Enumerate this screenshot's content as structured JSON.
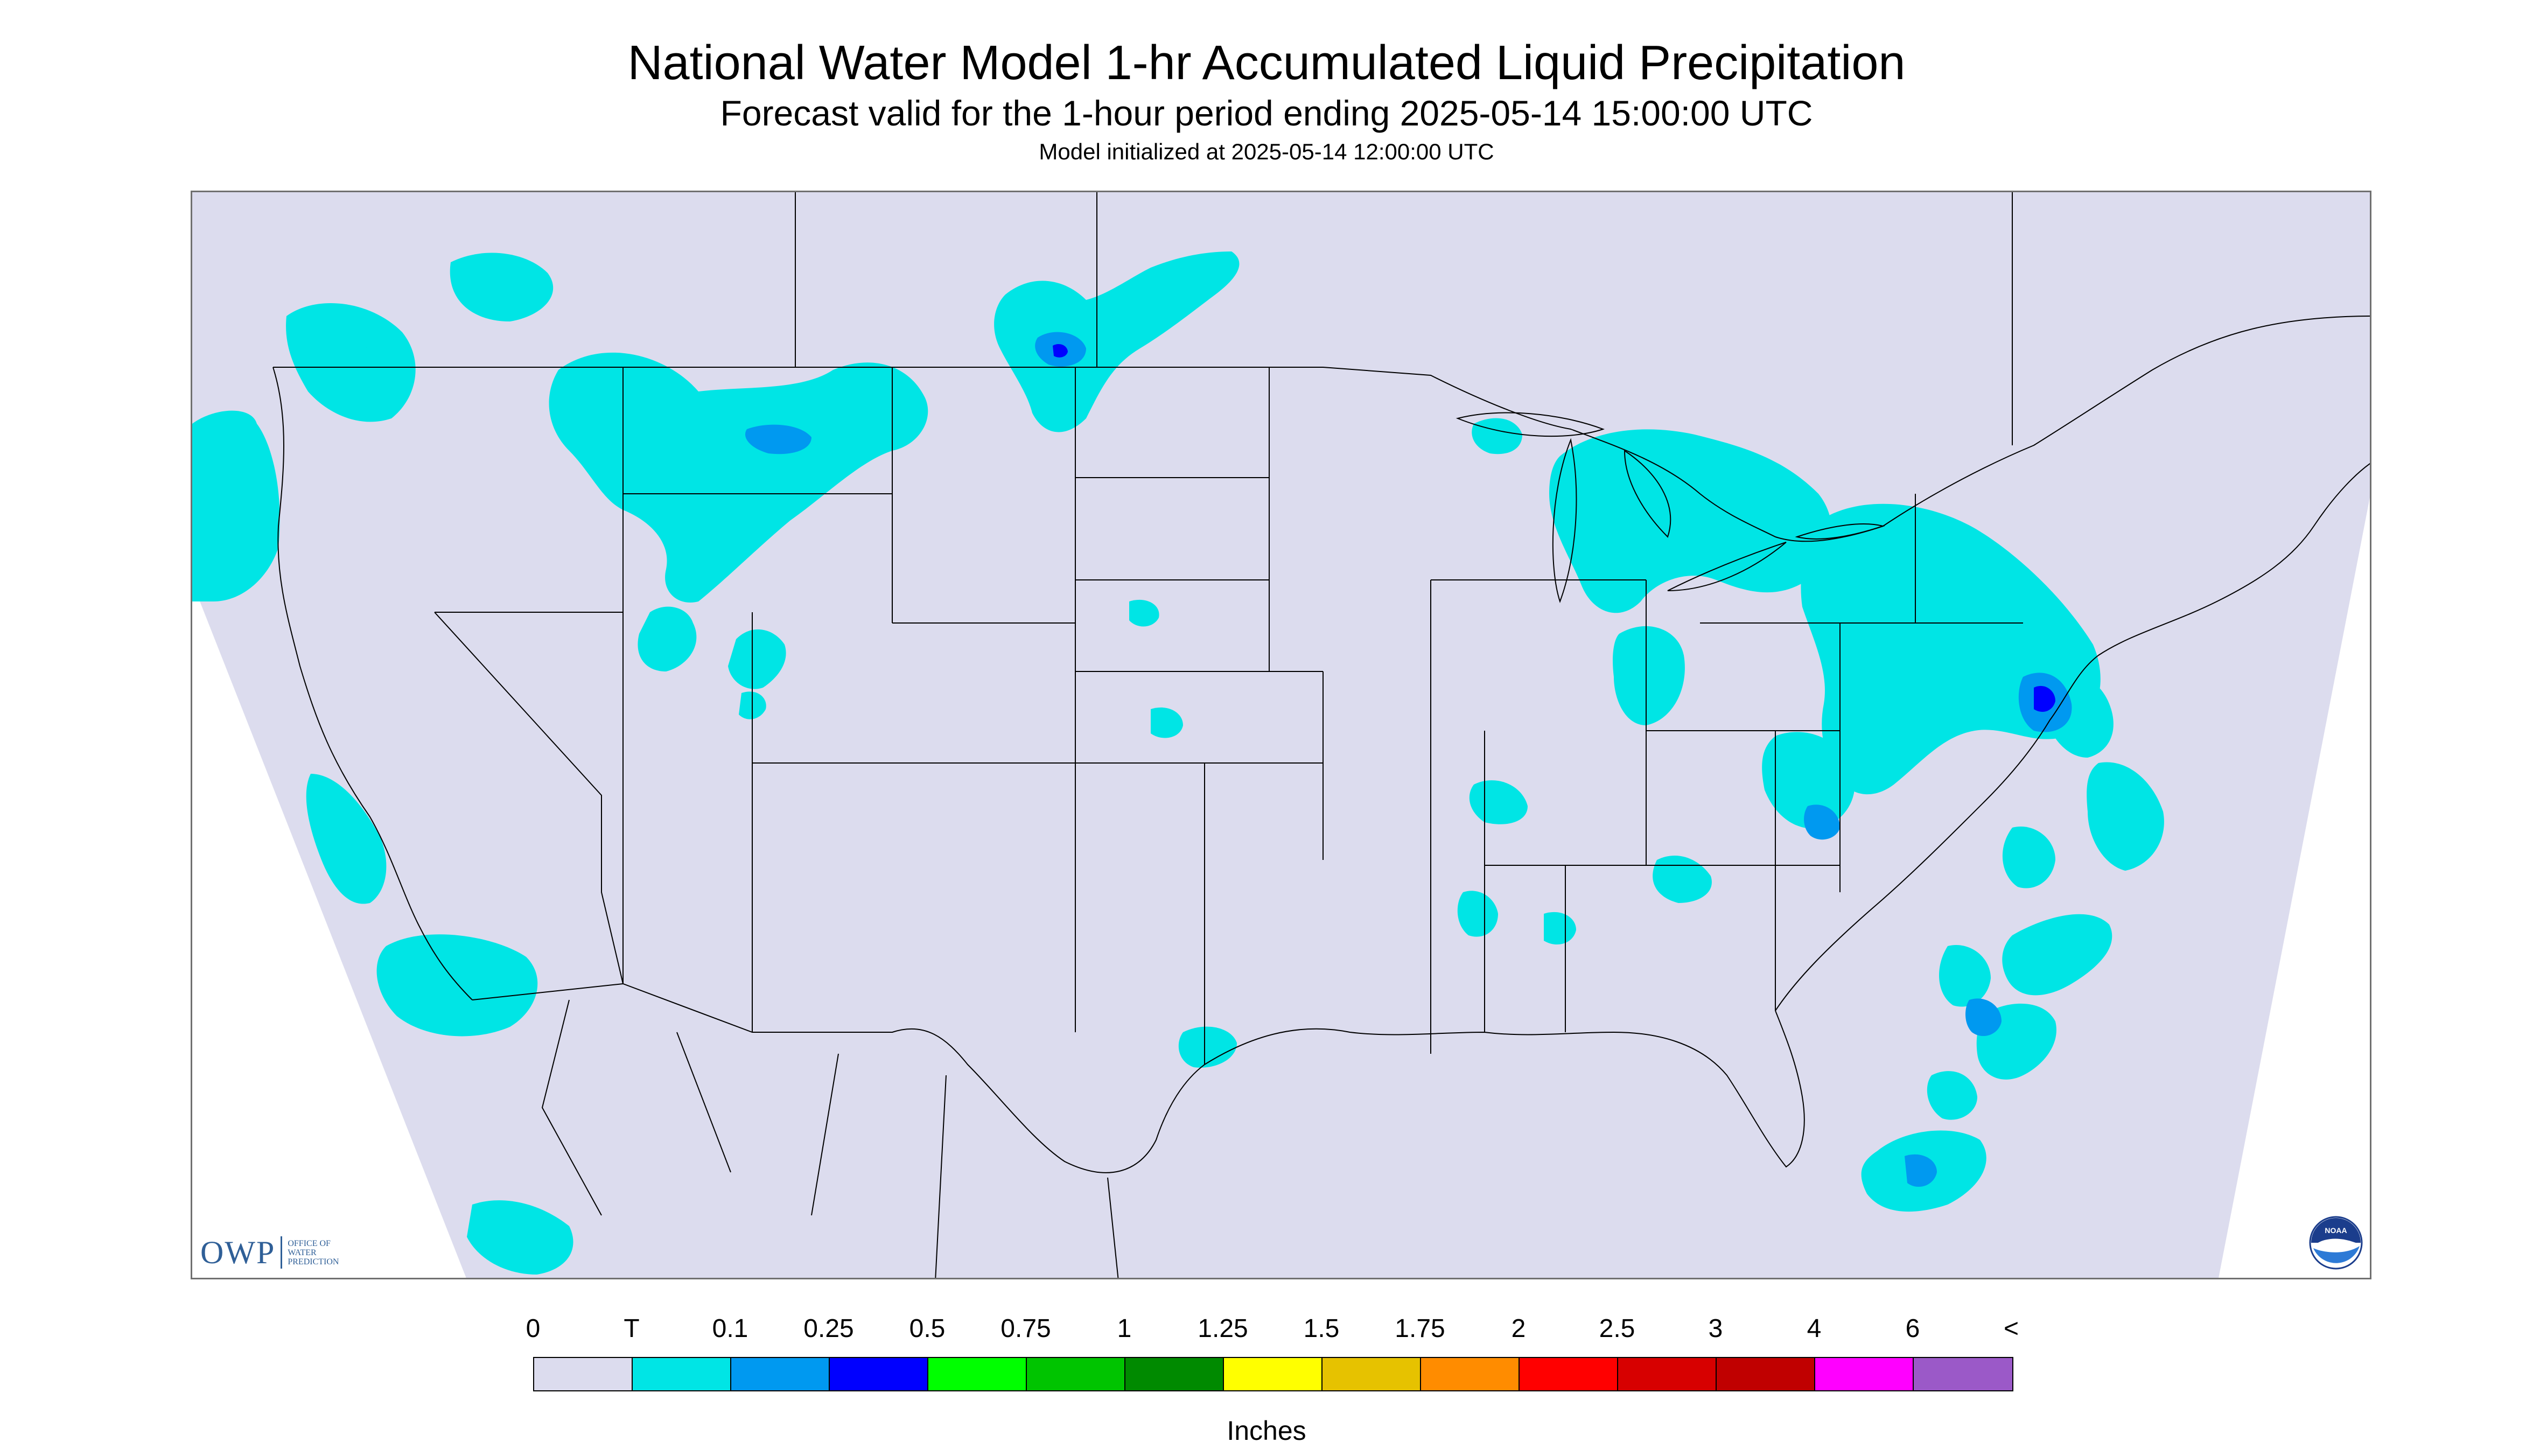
{
  "header": {
    "title": "National Water Model 1-hr Accumulated Liquid Precipitation",
    "subtitle": "Forecast valid for the 1-hour period ending 2025-05-14 15:00:00 UTC",
    "init": "Model initialized at 2025-05-14 12:00:00 UTC"
  },
  "map": {
    "domain_color": "#dcdcee",
    "boundary_color": "#000000"
  },
  "logos": {
    "owp_mark": "OWP",
    "owp_text": "OFFICE OF\nWATER\nPREDICTION",
    "noaa_text": "NOAA",
    "noaa_icon": "noaa-seal-icon"
  },
  "legend": {
    "labels": [
      "0",
      "T",
      "0.1",
      "0.25",
      "0.5",
      "0.75",
      "1",
      "1.25",
      "1.5",
      "1.75",
      "2",
      "2.5",
      "3",
      "4",
      "6",
      "<"
    ],
    "colors": [
      "#dcdcee",
      "#00e5e5",
      "#0099f0",
      "#0000ff",
      "#00ff00",
      "#00c400",
      "#008a00",
      "#ffff00",
      "#e6c200",
      "#ff8c00",
      "#ff0000",
      "#d70000",
      "#c00000",
      "#ff00ff",
      "#9b59c8"
    ],
    "units": "Inches"
  }
}
